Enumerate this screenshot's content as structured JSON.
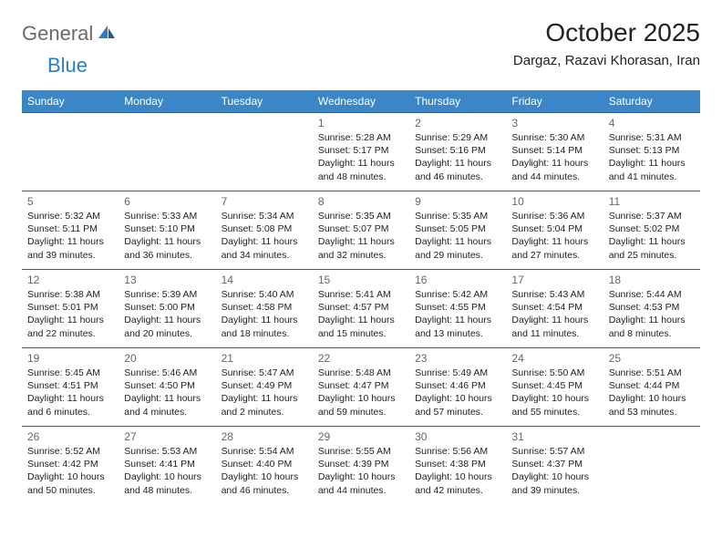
{
  "logo": {
    "general": "General",
    "blue": "Blue"
  },
  "title": "October 2025",
  "location": "Dargaz, Razavi Khorasan, Iran",
  "colors": {
    "header_bg": "#3b86c6",
    "header_text": "#ffffff",
    "cell_border": "#2d5f8f",
    "daynum_color": "#666666",
    "body_text": "#222222",
    "logo_gray": "#6b6b6b",
    "logo_blue": "#2f7cc0"
  },
  "day_headers": [
    "Sunday",
    "Monday",
    "Tuesday",
    "Wednesday",
    "Thursday",
    "Friday",
    "Saturday"
  ],
  "weeks": [
    [
      {
        "day": "",
        "sunrise": "",
        "sunset": "",
        "daylight": ""
      },
      {
        "day": "",
        "sunrise": "",
        "sunset": "",
        "daylight": ""
      },
      {
        "day": "",
        "sunrise": "",
        "sunset": "",
        "daylight": ""
      },
      {
        "day": "1",
        "sunrise": "Sunrise: 5:28 AM",
        "sunset": "Sunset: 5:17 PM",
        "daylight": "Daylight: 11 hours and 48 minutes."
      },
      {
        "day": "2",
        "sunrise": "Sunrise: 5:29 AM",
        "sunset": "Sunset: 5:16 PM",
        "daylight": "Daylight: 11 hours and 46 minutes."
      },
      {
        "day": "3",
        "sunrise": "Sunrise: 5:30 AM",
        "sunset": "Sunset: 5:14 PM",
        "daylight": "Daylight: 11 hours and 44 minutes."
      },
      {
        "day": "4",
        "sunrise": "Sunrise: 5:31 AM",
        "sunset": "Sunset: 5:13 PM",
        "daylight": "Daylight: 11 hours and 41 minutes."
      }
    ],
    [
      {
        "day": "5",
        "sunrise": "Sunrise: 5:32 AM",
        "sunset": "Sunset: 5:11 PM",
        "daylight": "Daylight: 11 hours and 39 minutes."
      },
      {
        "day": "6",
        "sunrise": "Sunrise: 5:33 AM",
        "sunset": "Sunset: 5:10 PM",
        "daylight": "Daylight: 11 hours and 36 minutes."
      },
      {
        "day": "7",
        "sunrise": "Sunrise: 5:34 AM",
        "sunset": "Sunset: 5:08 PM",
        "daylight": "Daylight: 11 hours and 34 minutes."
      },
      {
        "day": "8",
        "sunrise": "Sunrise: 5:35 AM",
        "sunset": "Sunset: 5:07 PM",
        "daylight": "Daylight: 11 hours and 32 minutes."
      },
      {
        "day": "9",
        "sunrise": "Sunrise: 5:35 AM",
        "sunset": "Sunset: 5:05 PM",
        "daylight": "Daylight: 11 hours and 29 minutes."
      },
      {
        "day": "10",
        "sunrise": "Sunrise: 5:36 AM",
        "sunset": "Sunset: 5:04 PM",
        "daylight": "Daylight: 11 hours and 27 minutes."
      },
      {
        "day": "11",
        "sunrise": "Sunrise: 5:37 AM",
        "sunset": "Sunset: 5:02 PM",
        "daylight": "Daylight: 11 hours and 25 minutes."
      }
    ],
    [
      {
        "day": "12",
        "sunrise": "Sunrise: 5:38 AM",
        "sunset": "Sunset: 5:01 PM",
        "daylight": "Daylight: 11 hours and 22 minutes."
      },
      {
        "day": "13",
        "sunrise": "Sunrise: 5:39 AM",
        "sunset": "Sunset: 5:00 PM",
        "daylight": "Daylight: 11 hours and 20 minutes."
      },
      {
        "day": "14",
        "sunrise": "Sunrise: 5:40 AM",
        "sunset": "Sunset: 4:58 PM",
        "daylight": "Daylight: 11 hours and 18 minutes."
      },
      {
        "day": "15",
        "sunrise": "Sunrise: 5:41 AM",
        "sunset": "Sunset: 4:57 PM",
        "daylight": "Daylight: 11 hours and 15 minutes."
      },
      {
        "day": "16",
        "sunrise": "Sunrise: 5:42 AM",
        "sunset": "Sunset: 4:55 PM",
        "daylight": "Daylight: 11 hours and 13 minutes."
      },
      {
        "day": "17",
        "sunrise": "Sunrise: 5:43 AM",
        "sunset": "Sunset: 4:54 PM",
        "daylight": "Daylight: 11 hours and 11 minutes."
      },
      {
        "day": "18",
        "sunrise": "Sunrise: 5:44 AM",
        "sunset": "Sunset: 4:53 PM",
        "daylight": "Daylight: 11 hours and 8 minutes."
      }
    ],
    [
      {
        "day": "19",
        "sunrise": "Sunrise: 5:45 AM",
        "sunset": "Sunset: 4:51 PM",
        "daylight": "Daylight: 11 hours and 6 minutes."
      },
      {
        "day": "20",
        "sunrise": "Sunrise: 5:46 AM",
        "sunset": "Sunset: 4:50 PM",
        "daylight": "Daylight: 11 hours and 4 minutes."
      },
      {
        "day": "21",
        "sunrise": "Sunrise: 5:47 AM",
        "sunset": "Sunset: 4:49 PM",
        "daylight": "Daylight: 11 hours and 2 minutes."
      },
      {
        "day": "22",
        "sunrise": "Sunrise: 5:48 AM",
        "sunset": "Sunset: 4:47 PM",
        "daylight": "Daylight: 10 hours and 59 minutes."
      },
      {
        "day": "23",
        "sunrise": "Sunrise: 5:49 AM",
        "sunset": "Sunset: 4:46 PM",
        "daylight": "Daylight: 10 hours and 57 minutes."
      },
      {
        "day": "24",
        "sunrise": "Sunrise: 5:50 AM",
        "sunset": "Sunset: 4:45 PM",
        "daylight": "Daylight: 10 hours and 55 minutes."
      },
      {
        "day": "25",
        "sunrise": "Sunrise: 5:51 AM",
        "sunset": "Sunset: 4:44 PM",
        "daylight": "Daylight: 10 hours and 53 minutes."
      }
    ],
    [
      {
        "day": "26",
        "sunrise": "Sunrise: 5:52 AM",
        "sunset": "Sunset: 4:42 PM",
        "daylight": "Daylight: 10 hours and 50 minutes."
      },
      {
        "day": "27",
        "sunrise": "Sunrise: 5:53 AM",
        "sunset": "Sunset: 4:41 PM",
        "daylight": "Daylight: 10 hours and 48 minutes."
      },
      {
        "day": "28",
        "sunrise": "Sunrise: 5:54 AM",
        "sunset": "Sunset: 4:40 PM",
        "daylight": "Daylight: 10 hours and 46 minutes."
      },
      {
        "day": "29",
        "sunrise": "Sunrise: 5:55 AM",
        "sunset": "Sunset: 4:39 PM",
        "daylight": "Daylight: 10 hours and 44 minutes."
      },
      {
        "day": "30",
        "sunrise": "Sunrise: 5:56 AM",
        "sunset": "Sunset: 4:38 PM",
        "daylight": "Daylight: 10 hours and 42 minutes."
      },
      {
        "day": "31",
        "sunrise": "Sunrise: 5:57 AM",
        "sunset": "Sunset: 4:37 PM",
        "daylight": "Daylight: 10 hours and 39 minutes."
      },
      {
        "day": "",
        "sunrise": "",
        "sunset": "",
        "daylight": ""
      }
    ]
  ]
}
